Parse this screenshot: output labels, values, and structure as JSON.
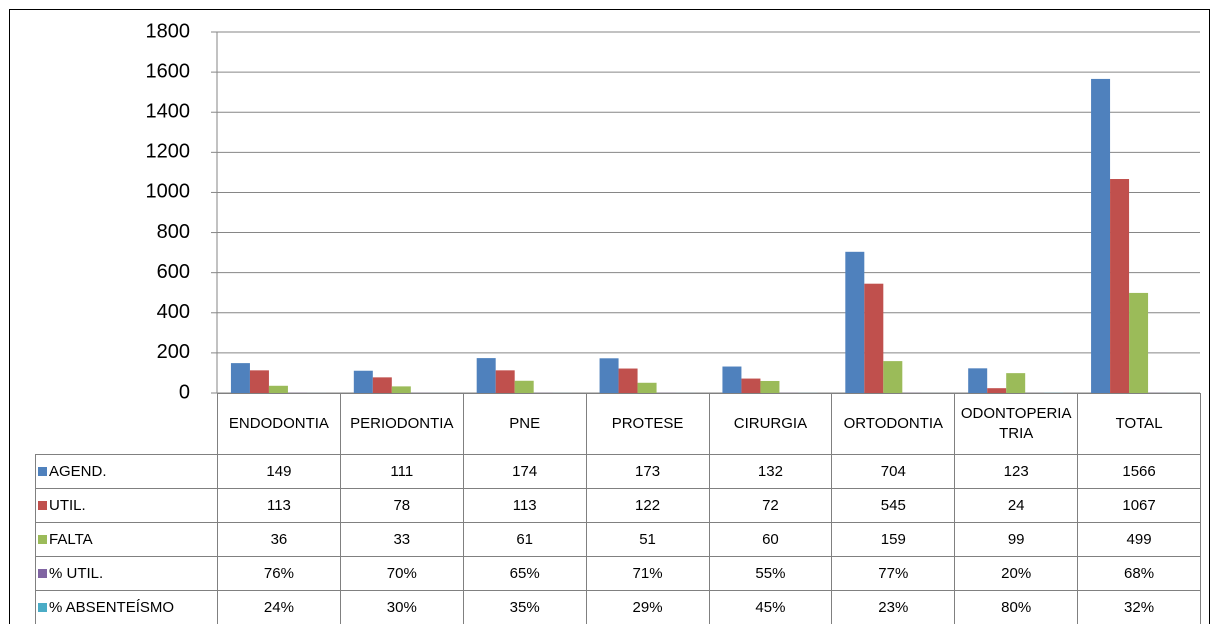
{
  "chart_data": {
    "type": "bar",
    "categories": [
      "ENDODONTIA",
      "PERIODONTIA",
      "PNE",
      "PROTESE",
      "CIRURGIA",
      "ORTODONTIA",
      "ODONTOPERIATRIA",
      "TOTAL"
    ],
    "series": [
      {
        "name": "AGEND.",
        "color": "#4f81bd",
        "values": [
          149,
          111,
          174,
          173,
          132,
          704,
          123,
          1566
        ]
      },
      {
        "name": "UTIL.",
        "color": "#c0504d",
        "values": [
          113,
          78,
          113,
          122,
          72,
          545,
          24,
          1067
        ]
      },
      {
        "name": "FALTA",
        "color": "#9bbb59",
        "values": [
          36,
          33,
          61,
          51,
          60,
          159,
          99,
          499
        ]
      },
      {
        "name": "% UTIL.",
        "color": "#8064a2",
        "values": [
          0.76,
          0.7,
          0.65,
          0.71,
          0.55,
          0.77,
          0.2,
          0.68
        ],
        "value_labels": [
          "76%",
          "70%",
          "65%",
          "71%",
          "55%",
          "77%",
          "20%",
          "68%"
        ]
      },
      {
        "name": "% ABSENTEÍSMO",
        "color": "#4bacc6",
        "values": [
          0.24,
          0.3,
          0.35,
          0.29,
          0.45,
          0.23,
          0.8,
          0.32
        ],
        "value_labels": [
          "24%",
          "30%",
          "35%",
          "29%",
          "45%",
          "23%",
          "80%",
          "32%"
        ]
      }
    ],
    "ylim": [
      0,
      1800
    ],
    "yticks": [
      0,
      200,
      400,
      600,
      800,
      1000,
      1200,
      1400,
      1600,
      1800
    ],
    "grid": true
  }
}
